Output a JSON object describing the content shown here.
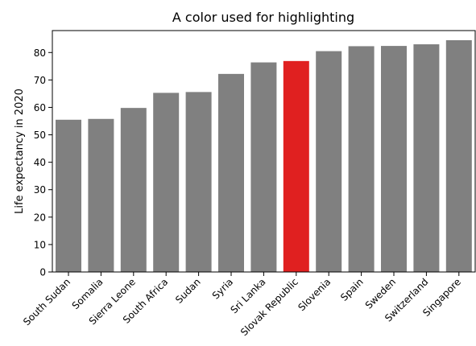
{
  "chart_data": {
    "type": "bar",
    "title": "A color used for highlighting",
    "xlabel": "",
    "ylabel": "Life expectancy in 2020",
    "categories": [
      "South Sudan",
      "Somalia",
      "Sierra Leone",
      "South Africa",
      "Sudan",
      "Syria",
      "Sri Lanka",
      "Slovak Republic",
      "Slovenia",
      "Spain",
      "Sweden",
      "Switzerland",
      "Singapore"
    ],
    "values": [
      55.5,
      55.8,
      59.8,
      65.3,
      65.6,
      72.2,
      76.4,
      76.9,
      80.5,
      82.3,
      82.4,
      83.0,
      84.5
    ],
    "highlight_index": 7,
    "ylim": [
      0,
      88
    ],
    "yticks": [
      0,
      10,
      20,
      30,
      40,
      50,
      60,
      70,
      80
    ],
    "grid": false,
    "colors": {
      "default": "#808080",
      "highlight": "#e02020"
    }
  }
}
